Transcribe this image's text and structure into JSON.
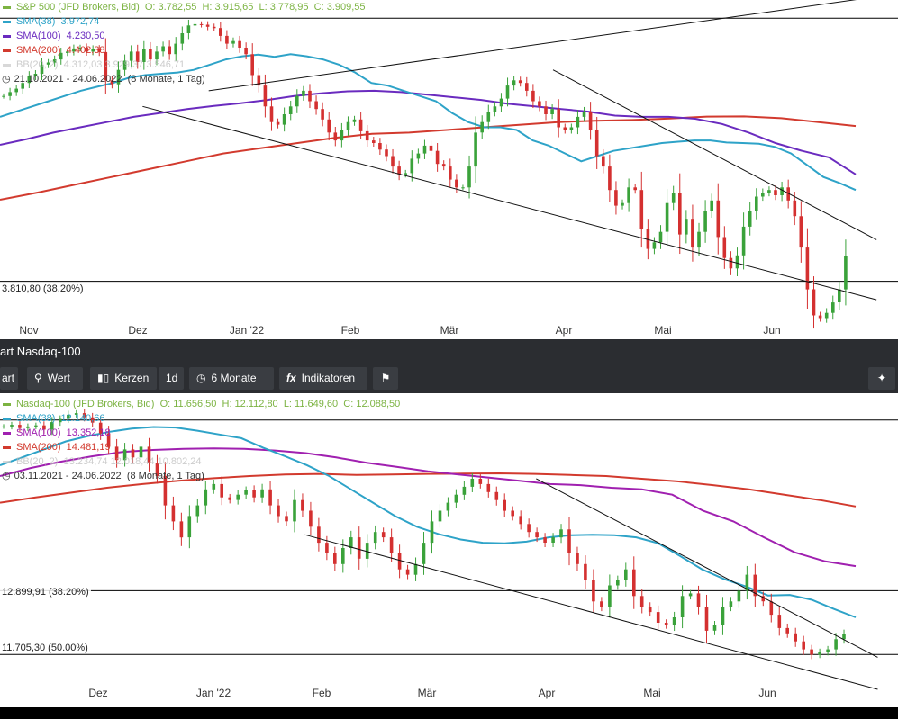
{
  "chart_data": [
    {
      "type": "candlestick",
      "instrument": "S&P 500 (JFD Brokers, Bid)",
      "ohlc_text": {
        "o": "O: 3.782,55",
        "h": "H: 3.915,65",
        "l": "L: 3.778,95",
        "c": "C: 3.909,55"
      },
      "indicators": [
        {
          "label": "SMA(38)",
          "value": "3.972,74",
          "color": "#2ea3c8"
        },
        {
          "label": "SMA(100)",
          "value": "4.230,50",
          "color": "#6a2bbf"
        },
        {
          "label": "SMA(200)",
          "value": "4.402,38",
          "color": "#d23a2e"
        },
        {
          "label": "BB(20, 2)",
          "value": "4.312,03  3.929,37  3.546,71",
          "color": "#d0d0d0"
        }
      ],
      "date_range": "21.10.2021 - 24.06.2022",
      "period": "(8 Monate, 1 Tag)",
      "fib_labels": [
        "3.810,80 (38.20%)"
      ],
      "x_labels": [
        "Nov",
        "Dez",
        "Jan '22",
        "Feb",
        "Mär",
        "Apr",
        "Mai",
        "Jun"
      ],
      "ylim": [
        3620,
        4860
      ],
      "horizontal_levels": [
        4818,
        3810.8
      ],
      "close_series": [
        4520,
        4535,
        4548,
        4570,
        4595,
        4605,
        4640,
        4648,
        4660,
        4685,
        4690,
        4702,
        4705,
        4690,
        4700,
        4688,
        4580,
        4565,
        4620,
        4655,
        4690,
        4650,
        4700,
        4660,
        4690,
        4710,
        4680,
        4720,
        4760,
        4790,
        4795,
        4793,
        4785,
        4780,
        4750,
        4720,
        4730,
        4705,
        4680,
        4600,
        4560,
        4480,
        4420,
        4410,
        4450,
        4480,
        4520,
        4540,
        4500,
        4470,
        4430,
        4380,
        4350,
        4390,
        4420,
        4430,
        4385,
        4350,
        4340,
        4315,
        4290,
        4250,
        4220,
        4225,
        4280,
        4300,
        4330,
        4310,
        4260,
        4250,
        4200,
        4170,
        4170,
        4250,
        4380,
        4420,
        4460,
        4480,
        4510,
        4560,
        4580,
        4570,
        4540,
        4500,
        4480,
        4450,
        4470,
        4400,
        4390,
        4400,
        4440,
        4460,
        4390,
        4290,
        4250,
        4160,
        4100,
        4110,
        4170,
        4160,
        4010,
        3935,
        3960,
        4000,
        4110,
        4150,
        3990,
        4050,
        3940,
        4000,
        4080,
        4120,
        3980,
        3900,
        3860,
        3910,
        4020,
        4080,
        4135,
        4150,
        4160,
        4140,
        4170,
        4120,
        4060,
        3940,
        3780,
        3680,
        3670,
        3690,
        3730,
        3780,
        3909
      ],
      "sma38": [
        4440,
        4460,
        4480,
        4500,
        4520,
        4540,
        4555,
        4570,
        4590,
        4600,
        4605,
        4610,
        4620,
        4640,
        4660,
        4672,
        4678,
        4670,
        4680,
        4672,
        4660,
        4640,
        4610,
        4570,
        4560,
        4540,
        4520,
        4500,
        4455,
        4420,
        4400,
        4400,
        4390,
        4350,
        4330,
        4300,
        4270,
        4290,
        4310,
        4320,
        4330,
        4340,
        4345,
        4350,
        4350,
        4342,
        4340,
        4337,
        4325,
        4300,
        4255,
        4210,
        4187,
        4160
      ],
      "sma100": [
        4333,
        4355,
        4380,
        4400,
        4420,
        4440,
        4455,
        4470,
        4482,
        4492,
        4505,
        4520,
        4530,
        4538,
        4540,
        4535,
        4525,
        4515,
        4505,
        4490,
        4480,
        4470,
        4460,
        4445,
        4440,
        4440,
        4433,
        4413,
        4380,
        4340,
        4310,
        4285,
        4220
      ],
      "sma200": [
        4123,
        4150,
        4180,
        4210,
        4240,
        4270,
        4300,
        4320,
        4340,
        4360,
        4375,
        4380,
        4390,
        4400,
        4410,
        4420,
        4425,
        4428,
        4434,
        4441,
        4442,
        4435,
        4420,
        4405
      ],
      "trendlines": [
        {
          "from": [
            "2021-12-01",
            4480
          ],
          "to": [
            "2022-06-30",
            3740
          ]
        },
        {
          "from": [
            "2021-12-20",
            4540
          ],
          "to": [
            "2022-06-30",
            4900
          ]
        },
        {
          "from": [
            "2022-03-29",
            4620
          ],
          "to": [
            "2022-06-30",
            3970
          ]
        }
      ]
    },
    {
      "type": "candlestick",
      "title": "art Nasdaq-100",
      "instrument": "Nasdaq-100 (JFD Brokers, Bid)",
      "ohlc_text": {
        "o": "O: 11.656,50",
        "h": "H: 12.112,80",
        "l": "L: 11.649,60",
        "c": "C: 12.088,50"
      },
      "indicators": [
        {
          "label": "SMA(38)",
          "value": "12.140,66",
          "color": "#2ea3c8"
        },
        {
          "label": "SMA(100)",
          "value": "13.352,18",
          "color": "#a020b0"
        },
        {
          "label": "SMA(200)",
          "value": "14.481,19",
          "color": "#d23a2e"
        },
        {
          "label": "BB(20, 2)",
          "value": "13.234,74  12.018,44  10.802,24",
          "color": "#d0d0d0"
        }
      ],
      "date_range": "03.11.2021 - 24.06.2022",
      "period": "(8 Monate, 1 Tag)",
      "fib_labels": [
        "12.899,91 (38.20%)",
        "11.705,30 (50.00%)"
      ],
      "x_labels": [
        "Dez",
        "Jan '22",
        "Feb",
        "Mär",
        "Apr",
        "Mai",
        "Jun"
      ],
      "ylim": [
        11000,
        16400
      ],
      "horizontal_levels": [
        16100,
        12899.91,
        11705.3
      ],
      "close_series": [
        15980,
        16010,
        15950,
        15980,
        16000,
        15920,
        16060,
        16120,
        16200,
        16230,
        16150,
        16050,
        15850,
        15600,
        15350,
        15550,
        15400,
        15600,
        15300,
        15050,
        14500,
        14200,
        13900,
        14300,
        14500,
        14800,
        14900,
        14650,
        14600,
        14700,
        14780,
        14650,
        14800,
        14500,
        14300,
        14200,
        14600,
        14400,
        14100,
        13800,
        13600,
        13400,
        13700,
        13900,
        13500,
        13800,
        14000,
        13900,
        13600,
        13300,
        13200,
        13400,
        13800,
        14200,
        14400,
        14550,
        14700,
        14850,
        15000,
        14900,
        14750,
        14600,
        14400,
        14300,
        14150,
        14000,
        13900,
        13800,
        13900,
        14050,
        13600,
        13400,
        13100,
        12700,
        12600,
        13000,
        13100,
        13300,
        12800,
        12600,
        12500,
        12300,
        12250,
        12400,
        12800,
        12850,
        12600,
        12150,
        12250,
        12600,
        12700,
        12900,
        13200,
        12800,
        12700,
        12450,
        12200,
        12100,
        11950,
        11800,
        11700,
        11750,
        11800,
        11990,
        12088
      ],
      "sma38": [
        15250,
        15400,
        15550,
        15700,
        15800,
        15880,
        15940,
        15970,
        15960,
        15900,
        15830,
        15760,
        15580,
        15420,
        15250,
        15050,
        14800,
        14550,
        14300,
        14100,
        13960,
        13860,
        13800,
        13790,
        13820,
        13900,
        13940,
        13950,
        13940,
        13900,
        13790,
        13550,
        13300,
        13120,
        12980,
        12810,
        12820,
        12730,
        12560,
        12400
      ],
      "sma100": [
        15050,
        15200,
        15320,
        15420,
        15500,
        15540,
        15560,
        15570,
        15560,
        15530,
        15480,
        15400,
        15300,
        15220,
        15140,
        15080,
        15020,
        14960,
        14900,
        14880,
        14830,
        14800,
        14700,
        14400,
        14200,
        13900,
        13620,
        13450,
        13360
      ],
      "sma200": [
        14550,
        14650,
        14740,
        14830,
        14900,
        14960,
        15010,
        15050,
        15080,
        15090,
        15070,
        15080,
        15090,
        15095,
        15100,
        15090,
        15070,
        15050,
        15000,
        14950,
        14880,
        14800,
        14700,
        14600,
        14480
      ],
      "trendlines": [
        {
          "from": [
            "2022-01-25",
            13950
          ],
          "to": [
            "2022-06-30",
            11050
          ]
        },
        {
          "from": [
            "2022-03-29",
            15000
          ],
          "to": [
            "2022-06-30",
            11650
          ]
        }
      ]
    }
  ],
  "titlebar": {
    "title": "art Nasdaq-100"
  },
  "toolbar": {
    "chart_btn": "art",
    "value_btn": "Wert",
    "candles_btn": "Kerzen",
    "interval_btn": "1d",
    "range_btn": "6 Monate",
    "indicators_btn": "Indikatoren",
    "fx_icon": "fx",
    "flag_icon": "flag-icon",
    "settings_icon": "sparkle-icon"
  }
}
